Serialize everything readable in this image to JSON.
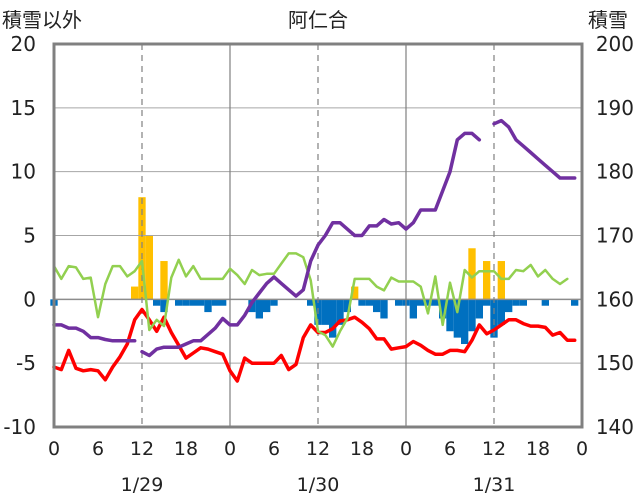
{
  "chart_data": {
    "type": "bar+line",
    "title": "阿仁合",
    "left_axis": {
      "label": "積雪以外",
      "ticks": [
        "20",
        "15",
        "10",
        "5",
        "0",
        "-5",
        "-10"
      ],
      "range": [
        -10,
        20
      ]
    },
    "right_axis": {
      "label": "積雪",
      "ticks": [
        "200",
        "190",
        "180",
        "170",
        "160",
        "150",
        "140"
      ],
      "range": [
        140,
        200
      ]
    },
    "x_ticks": [
      "0",
      "6",
      "12",
      "18",
      "0",
      "6",
      "12",
      "18",
      "0",
      "6",
      "12",
      "18",
      "0"
    ],
    "x_tick_hours": [
      0,
      6,
      12,
      18,
      24,
      30,
      36,
      42,
      48,
      54,
      60,
      66,
      72
    ],
    "date_labels": [
      "1/29",
      "1/30",
      "1/31"
    ],
    "date_label_hours": [
      12,
      36,
      60
    ],
    "x_range": [
      0,
      72
    ],
    "grid": {
      "day_separators_solid": [
        24,
        48
      ],
      "noon_dashed": [
        12,
        36,
        60
      ]
    },
    "colors": {
      "snowfall": "#ffc000",
      "precip_neg": "#0070c0",
      "temperature": "#ff0000",
      "wind": "#92d050",
      "snow_depth": "#7030a0"
    },
    "series": [
      {
        "key": "snowfall",
        "axis": "left",
        "kind": "bar",
        "values": [
          [
            11,
            1
          ],
          [
            12,
            8
          ],
          [
            13,
            5
          ],
          [
            15,
            3
          ],
          [
            41,
            1
          ],
          [
            57,
            4
          ],
          [
            59,
            3
          ],
          [
            61,
            3
          ]
        ]
      },
      {
        "key": "precip_neg",
        "axis": "left",
        "kind": "bar",
        "values": [
          [
            0,
            -0.5
          ],
          [
            14,
            -0.5
          ],
          [
            15,
            -1
          ],
          [
            17,
            -0.5
          ],
          [
            18,
            -0.5
          ],
          [
            19,
            -0.5
          ],
          [
            20,
            -0.5
          ],
          [
            21,
            -1
          ],
          [
            22,
            -0.5
          ],
          [
            23,
            -0.5
          ],
          [
            27,
            -1
          ],
          [
            28,
            -1.5
          ],
          [
            29,
            -1
          ],
          [
            30,
            -0.5
          ],
          [
            35,
            -0.5
          ],
          [
            36,
            -2
          ],
          [
            37,
            -2
          ],
          [
            38,
            -3
          ],
          [
            39,
            -2
          ],
          [
            40,
            -1
          ],
          [
            42,
            -0.5
          ],
          [
            43,
            -0.5
          ],
          [
            44,
            -1
          ],
          [
            45,
            -1.5
          ],
          [
            47,
            -0.5
          ],
          [
            48,
            -0.5
          ],
          [
            49,
            -1.5
          ],
          [
            50,
            -0.5
          ],
          [
            51,
            -0.5
          ],
          [
            52,
            -0.5
          ],
          [
            53,
            -1.5
          ],
          [
            54,
            -2.5
          ],
          [
            55,
            -3
          ],
          [
            56,
            -3.5
          ],
          [
            57,
            -2.5
          ],
          [
            58,
            -1.5
          ],
          [
            59,
            -0.5
          ],
          [
            60,
            -3
          ],
          [
            61,
            -2
          ],
          [
            62,
            -1
          ],
          [
            63,
            -0.5
          ],
          [
            64,
            -0.5
          ],
          [
            67,
            -0.5
          ],
          [
            71,
            -0.5
          ]
        ]
      },
      {
        "key": "temperature",
        "axis": "left",
        "kind": "line",
        "values": [
          [
            0,
            -5.3
          ],
          [
            1,
            -5.5
          ],
          [
            2,
            -4
          ],
          [
            3,
            -5.4
          ],
          [
            4,
            -5.6
          ],
          [
            5,
            -5.5
          ],
          [
            6,
            -5.6
          ],
          [
            7,
            -6.3
          ],
          [
            8,
            -5.3
          ],
          [
            9,
            -4.5
          ],
          [
            10,
            -3.5
          ],
          [
            11,
            -1.6
          ],
          [
            12,
            -0.8
          ],
          [
            13,
            -1.6
          ],
          [
            14,
            -2.5
          ],
          [
            15,
            -1.4
          ],
          [
            16,
            -2.6
          ],
          [
            17,
            -3.6
          ],
          [
            18,
            -4.6
          ],
          [
            19,
            -4.2
          ],
          [
            20,
            -3.8
          ],
          [
            21,
            -3.9
          ],
          [
            22,
            -4.1
          ],
          [
            23,
            -4.3
          ],
          [
            24,
            -5.6
          ],
          [
            25,
            -6.4
          ],
          [
            26,
            -4.6
          ],
          [
            27,
            -5
          ],
          [
            28,
            -5
          ],
          [
            29,
            -5
          ],
          [
            30,
            -5
          ],
          [
            31,
            -4.4
          ],
          [
            32,
            -5.5
          ],
          [
            33,
            -5.1
          ],
          [
            34,
            -3
          ],
          [
            35,
            -2
          ],
          [
            36,
            -2.6
          ],
          [
            37,
            -2.6
          ],
          [
            38,
            -2.3
          ],
          [
            39,
            -1.7
          ],
          [
            40,
            -1.6
          ],
          [
            41,
            -1.4
          ],
          [
            42,
            -1.8
          ],
          [
            43,
            -2.3
          ],
          [
            44,
            -3.1
          ],
          [
            45,
            -3.1
          ],
          [
            46,
            -3.9
          ],
          [
            47,
            -3.8
          ],
          [
            48,
            -3.7
          ],
          [
            49,
            -3.3
          ],
          [
            50,
            -3.6
          ],
          [
            51,
            -4
          ],
          [
            52,
            -4.3
          ],
          [
            53,
            -4.3
          ],
          [
            54,
            -4
          ],
          [
            55,
            -4
          ],
          [
            56,
            -4.1
          ],
          [
            57,
            -3.2
          ],
          [
            58,
            -2
          ],
          [
            59,
            -2.7
          ],
          [
            60,
            -2.4
          ],
          [
            61,
            -2
          ],
          [
            62,
            -1.6
          ],
          [
            63,
            -1.6
          ],
          [
            64,
            -1.9
          ],
          [
            65,
            -2.1
          ],
          [
            66,
            -2.1
          ],
          [
            67,
            -2.2
          ],
          [
            68,
            -2.8
          ],
          [
            69,
            -2.6
          ],
          [
            70,
            -3.2
          ],
          [
            71,
            -3.2
          ]
        ]
      },
      {
        "key": "wind",
        "axis": "left",
        "kind": "line",
        "values": [
          [
            0,
            2.6
          ],
          [
            1,
            1.6
          ],
          [
            2,
            2.6
          ],
          [
            3,
            2.5
          ],
          [
            4,
            1.6
          ],
          [
            5,
            1.7
          ],
          [
            6,
            -1.4
          ],
          [
            7,
            1.2
          ],
          [
            8,
            2.6
          ],
          [
            9,
            2.6
          ],
          [
            10,
            1.8
          ],
          [
            11,
            2.2
          ],
          [
            12,
            3
          ],
          [
            13,
            -2.4
          ],
          [
            14,
            -1.6
          ],
          [
            15,
            -2.1
          ],
          [
            16,
            1.7
          ],
          [
            17,
            3.1
          ],
          [
            18,
            1.8
          ],
          [
            19,
            2.6
          ],
          [
            20,
            1.6
          ],
          [
            21,
            1.6
          ],
          [
            22,
            1.6
          ],
          [
            23,
            1.6
          ],
          [
            24,
            2.4
          ],
          [
            25,
            1.9
          ],
          [
            26,
            1.2
          ],
          [
            27,
            2.3
          ],
          [
            28,
            1.9
          ],
          [
            29,
            2
          ],
          [
            30,
            2
          ],
          [
            31,
            2.8
          ],
          [
            32,
            3.6
          ],
          [
            33,
            3.6
          ],
          [
            34,
            3.3
          ],
          [
            35,
            1.5
          ],
          [
            36,
            -2.5
          ],
          [
            37,
            -2.8
          ],
          [
            38,
            -3.7
          ],
          [
            39,
            -2.5
          ],
          [
            40,
            -1.5
          ],
          [
            41,
            1.6
          ],
          [
            42,
            1.6
          ],
          [
            43,
            1.6
          ],
          [
            44,
            1
          ],
          [
            45,
            0.7
          ],
          [
            46,
            1.7
          ],
          [
            47,
            1.4
          ],
          [
            48,
            1.4
          ],
          [
            49,
            1.4
          ],
          [
            50,
            1
          ],
          [
            51,
            -1.1
          ],
          [
            52,
            1.8
          ],
          [
            53,
            -2
          ],
          [
            54,
            1.3
          ],
          [
            55,
            -1
          ],
          [
            56,
            2.3
          ],
          [
            57,
            1.7
          ],
          [
            58,
            2.2
          ],
          [
            59,
            2.2
          ],
          [
            60,
            2.2
          ],
          [
            61,
            1.6
          ],
          [
            62,
            1.6
          ],
          [
            63,
            2.3
          ],
          [
            64,
            2.2
          ],
          [
            65,
            2.7
          ],
          [
            66,
            1.8
          ],
          [
            67,
            2.3
          ],
          [
            68,
            1.6
          ],
          [
            69,
            1.2
          ],
          [
            70,
            1.6
          ]
        ]
      },
      {
        "key": "snow_depth",
        "axis": "right",
        "kind": "line",
        "values": [
          [
            0,
            156
          ],
          [
            1,
            156
          ],
          [
            2,
            155.5
          ],
          [
            3,
            155.5
          ],
          [
            4,
            155
          ],
          [
            5,
            154
          ],
          [
            6,
            154
          ],
          [
            7,
            153.7
          ],
          [
            8,
            153.5
          ],
          [
            9,
            153.5
          ],
          [
            10,
            153.5
          ],
          [
            11,
            153.5
          ],
          [
            null,
            null
          ],
          [
            12,
            151.8
          ],
          [
            13,
            151.2
          ],
          [
            14,
            152.2
          ],
          [
            15,
            152.5
          ],
          [
            16,
            152.5
          ],
          [
            17,
            152.5
          ],
          [
            18,
            153
          ],
          [
            19,
            153.5
          ],
          [
            20,
            153.5
          ],
          [
            21,
            154.5
          ],
          [
            22,
            155.5
          ],
          [
            23,
            157
          ],
          [
            24,
            156
          ],
          [
            25,
            156
          ],
          [
            26,
            157.5
          ],
          [
            27,
            159.5
          ],
          [
            28,
            161
          ],
          [
            29,
            162.5
          ],
          [
            30,
            163.5
          ],
          [
            31,
            162.5
          ],
          [
            32,
            161.5
          ],
          [
            33,
            160.5
          ],
          [
            34,
            161.5
          ],
          [
            35,
            166
          ],
          [
            36,
            168.5
          ],
          [
            37,
            170
          ],
          [
            38,
            172
          ],
          [
            39,
            172
          ],
          [
            40,
            171
          ],
          [
            41,
            170
          ],
          [
            42,
            170
          ],
          [
            43,
            171.5
          ],
          [
            44,
            171.5
          ],
          [
            45,
            172.5
          ],
          [
            46,
            171.8
          ],
          [
            47,
            172
          ],
          [
            48,
            171
          ],
          [
            49,
            172
          ],
          [
            50,
            174
          ],
          [
            51,
            174
          ],
          [
            52,
            174
          ],
          [
            53,
            177
          ],
          [
            54,
            180
          ],
          [
            55,
            185
          ],
          [
            56,
            186
          ],
          [
            57,
            186
          ],
          [
            58,
            185
          ],
          [
            null,
            null
          ],
          [
            60,
            187.5
          ],
          [
            61,
            188
          ],
          [
            62,
            187
          ],
          [
            63,
            185
          ],
          [
            64,
            184
          ],
          [
            65,
            183
          ],
          [
            66,
            182
          ],
          [
            67,
            181
          ],
          [
            68,
            180
          ],
          [
            69,
            179
          ],
          [
            70,
            179
          ],
          [
            71,
            179
          ]
        ]
      }
    ]
  }
}
